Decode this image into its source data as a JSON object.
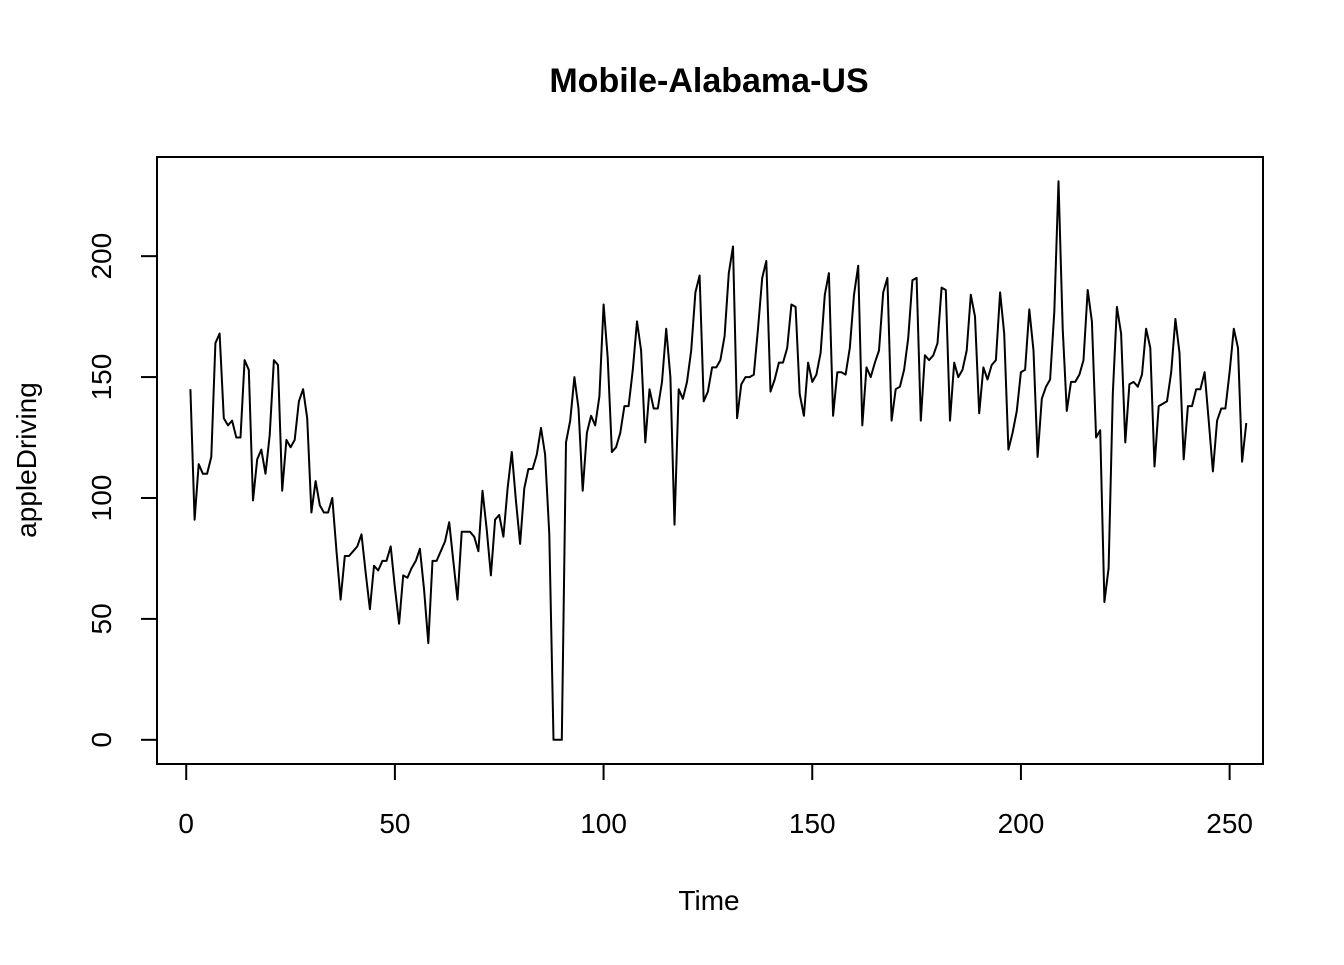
{
  "chart_data": {
    "type": "line",
    "title": "Mobile-Alabama-US",
    "xlabel": "Time",
    "ylabel": "appleDriving",
    "xlim": [
      -7,
      258
    ],
    "ylim": [
      -10,
      241
    ],
    "x_ticks": [
      0,
      50,
      100,
      150,
      200,
      250
    ],
    "x_tick_labels": [
      "0",
      "50",
      "100",
      "150",
      "200",
      "250"
    ],
    "y_ticks": [
      0,
      50,
      100,
      150,
      200
    ],
    "y_tick_labels": [
      "0",
      "50",
      "100",
      "150",
      "200"
    ],
    "grid": false,
    "legend": "none",
    "line_color": "#000000",
    "series": [
      {
        "x_start": 1,
        "values": [
          145,
          91,
          114,
          110,
          110,
          117,
          164,
          168,
          133,
          130,
          132,
          125,
          125,
          157,
          153,
          99,
          116,
          120,
          110,
          126,
          157,
          155,
          103,
          124,
          121,
          124,
          140,
          145,
          133,
          94,
          107,
          97,
          94,
          94,
          100,
          78,
          58,
          76,
          76,
          78,
          80,
          85,
          69,
          54,
          72,
          70,
          74,
          74,
          80,
          63,
          48,
          68,
          67,
          71,
          74,
          79,
          62,
          40,
          74,
          74,
          78,
          82,
          90,
          74,
          58,
          86,
          86,
          86,
          84,
          78,
          103,
          87,
          68,
          91,
          93,
          84,
          104,
          119,
          99,
          81,
          104,
          112,
          112,
          118,
          129,
          118,
          85,
          0,
          0,
          0,
          123,
          132,
          150,
          137,
          103,
          127,
          134,
          130,
          142,
          180,
          158,
          119,
          121,
          127,
          138,
          138,
          153,
          173,
          161,
          123,
          145,
          137,
          137,
          148,
          170,
          150,
          89,
          145,
          141,
          148,
          161,
          185,
          192,
          140,
          144,
          154,
          154,
          157,
          167,
          193,
          204,
          133,
          147,
          150,
          150,
          151,
          170,
          191,
          198,
          144,
          149,
          156,
          156,
          162,
          180,
          179,
          143,
          134,
          156,
          148,
          151,
          160,
          184,
          193,
          134,
          152,
          152,
          151,
          162,
          184,
          196,
          130,
          154,
          150,
          156,
          161,
          185,
          191,
          132,
          145,
          146,
          153,
          166,
          190,
          191,
          132,
          159,
          157,
          159,
          164,
          187,
          186,
          132,
          156,
          150,
          153,
          161,
          184,
          175,
          135,
          154,
          149,
          155,
          157,
          185,
          168,
          120,
          127,
          136,
          152,
          153,
          178,
          161,
          117,
          141,
          146,
          149,
          177,
          231,
          170,
          136,
          148,
          148,
          151,
          157,
          186,
          173,
          125,
          128,
          57,
          71,
          143,
          179,
          168,
          123,
          147,
          148,
          146,
          151,
          170,
          162,
          113,
          138,
          139,
          140,
          152,
          174,
          160,
          116,
          138,
          138,
          145,
          145,
          152,
          132,
          111,
          132,
          137,
          137,
          152,
          170,
          162,
          115,
          131
        ]
      }
    ]
  }
}
